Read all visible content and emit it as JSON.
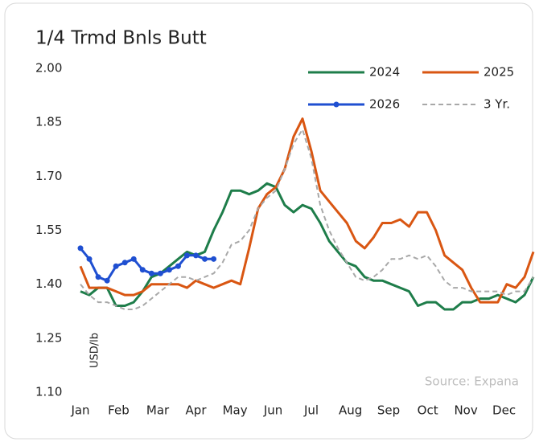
{
  "chart_data": {
    "type": "line",
    "title": "1/4 Trmd Bnls Butt",
    "y_label": "USD/lb",
    "source": "Source: Expana",
    "x": [
      1,
      2,
      3,
      4,
      5,
      6,
      7,
      8,
      9,
      10,
      11,
      12,
      13,
      14,
      15,
      16,
      17,
      18,
      19,
      20,
      21,
      22,
      23,
      24,
      25,
      26,
      27,
      28,
      29,
      30,
      31,
      32,
      33,
      34,
      35,
      36,
      37,
      38,
      39,
      40,
      41,
      42,
      43,
      44,
      45,
      46,
      47,
      48,
      49,
      50,
      51,
      52
    ],
    "xlim": [
      1,
      52
    ],
    "xticks": [
      {
        "value": 1,
        "label": "Jan"
      },
      {
        "value": 5.3,
        "label": "Feb"
      },
      {
        "value": 9.7,
        "label": "Mar"
      },
      {
        "value": 14,
        "label": "Apr"
      },
      {
        "value": 18.4,
        "label": "May"
      },
      {
        "value": 22.7,
        "label": "Jun"
      },
      {
        "value": 27,
        "label": "Jul"
      },
      {
        "value": 31.4,
        "label": "Aug"
      },
      {
        "value": 35.7,
        "label": "Sep"
      },
      {
        "value": 40.1,
        "label": "Oct"
      },
      {
        "value": 44.4,
        "label": "Nov"
      },
      {
        "value": 48.7,
        "label": "Dec"
      }
    ],
    "ylim": [
      1.1,
      2.0
    ],
    "yticks": [
      {
        "value": 1.1,
        "label": "1.10"
      },
      1.25,
      {
        "value": 1.4,
        "label": "1.40"
      },
      1.55,
      {
        "value": 1.7,
        "label": "1.70"
      },
      1.85,
      {
        "value": 2.0,
        "label": "2.00"
      }
    ],
    "grid": false,
    "series": [
      {
        "name": "2024",
        "color": "#1e7d4a",
        "dash": false,
        "markers": false,
        "values": [
          1.38,
          1.37,
          1.39,
          1.39,
          1.34,
          1.34,
          1.35,
          1.38,
          1.42,
          1.43,
          1.45,
          1.47,
          1.49,
          1.48,
          1.49,
          1.55,
          1.6,
          1.66,
          1.66,
          1.65,
          1.66,
          1.68,
          1.67,
          1.62,
          1.6,
          1.62,
          1.61,
          1.57,
          1.52,
          1.49,
          1.46,
          1.45,
          1.42,
          1.41,
          1.41,
          1.4,
          1.39,
          1.38,
          1.34,
          1.35,
          1.35,
          1.33,
          1.33,
          1.35,
          1.35,
          1.36,
          1.36,
          1.37,
          1.36,
          1.35,
          1.37,
          1.42
        ]
      },
      {
        "name": "2025",
        "color": "#d95612",
        "dash": false,
        "markers": false,
        "values": [
          1.45,
          1.39,
          1.39,
          1.39,
          1.38,
          1.37,
          1.37,
          1.38,
          1.4,
          1.4,
          1.4,
          1.4,
          1.39,
          1.41,
          1.4,
          1.39,
          1.4,
          1.41,
          1.4,
          1.5,
          1.61,
          1.65,
          1.67,
          1.72,
          1.81,
          1.86,
          1.77,
          1.66,
          1.63,
          1.6,
          1.57,
          1.52,
          1.5,
          1.53,
          1.57,
          1.57,
          1.58,
          1.56,
          1.6,
          1.6,
          1.55,
          1.48,
          1.46,
          1.44,
          1.39,
          1.35,
          1.35,
          1.35,
          1.4,
          1.39,
          1.42,
          1.49
        ]
      },
      {
        "name": "2026",
        "color": "#1f4fd1",
        "dash": false,
        "markers": true,
        "values": [
          1.5,
          1.47,
          1.42,
          1.41,
          1.45,
          1.46,
          1.47,
          1.44,
          1.43,
          1.43,
          1.44,
          1.45,
          1.48,
          1.48,
          1.47,
          1.47,
          null,
          null,
          null,
          null,
          null,
          null,
          null,
          null,
          null,
          null,
          null,
          null,
          null,
          null,
          null,
          null,
          null,
          null,
          null,
          null,
          null,
          null,
          null,
          null,
          null,
          null,
          null,
          null,
          null,
          null,
          null,
          null,
          null,
          null,
          null,
          null
        ]
      },
      {
        "name": "3 Yr.",
        "color": "#a8a8a8",
        "dash": true,
        "markers": false,
        "values": [
          1.4,
          1.37,
          1.35,
          1.35,
          1.34,
          1.33,
          1.33,
          1.34,
          1.36,
          1.38,
          1.4,
          1.42,
          1.42,
          1.41,
          1.42,
          1.43,
          1.46,
          1.51,
          1.52,
          1.55,
          1.61,
          1.64,
          1.66,
          1.72,
          1.79,
          1.83,
          1.75,
          1.62,
          1.55,
          1.5,
          1.46,
          1.42,
          1.41,
          1.42,
          1.44,
          1.47,
          1.47,
          1.48,
          1.47,
          1.48,
          1.45,
          1.41,
          1.39,
          1.39,
          1.38,
          1.38,
          1.38,
          1.38,
          1.37,
          1.38,
          1.38,
          1.42
        ]
      }
    ]
  }
}
